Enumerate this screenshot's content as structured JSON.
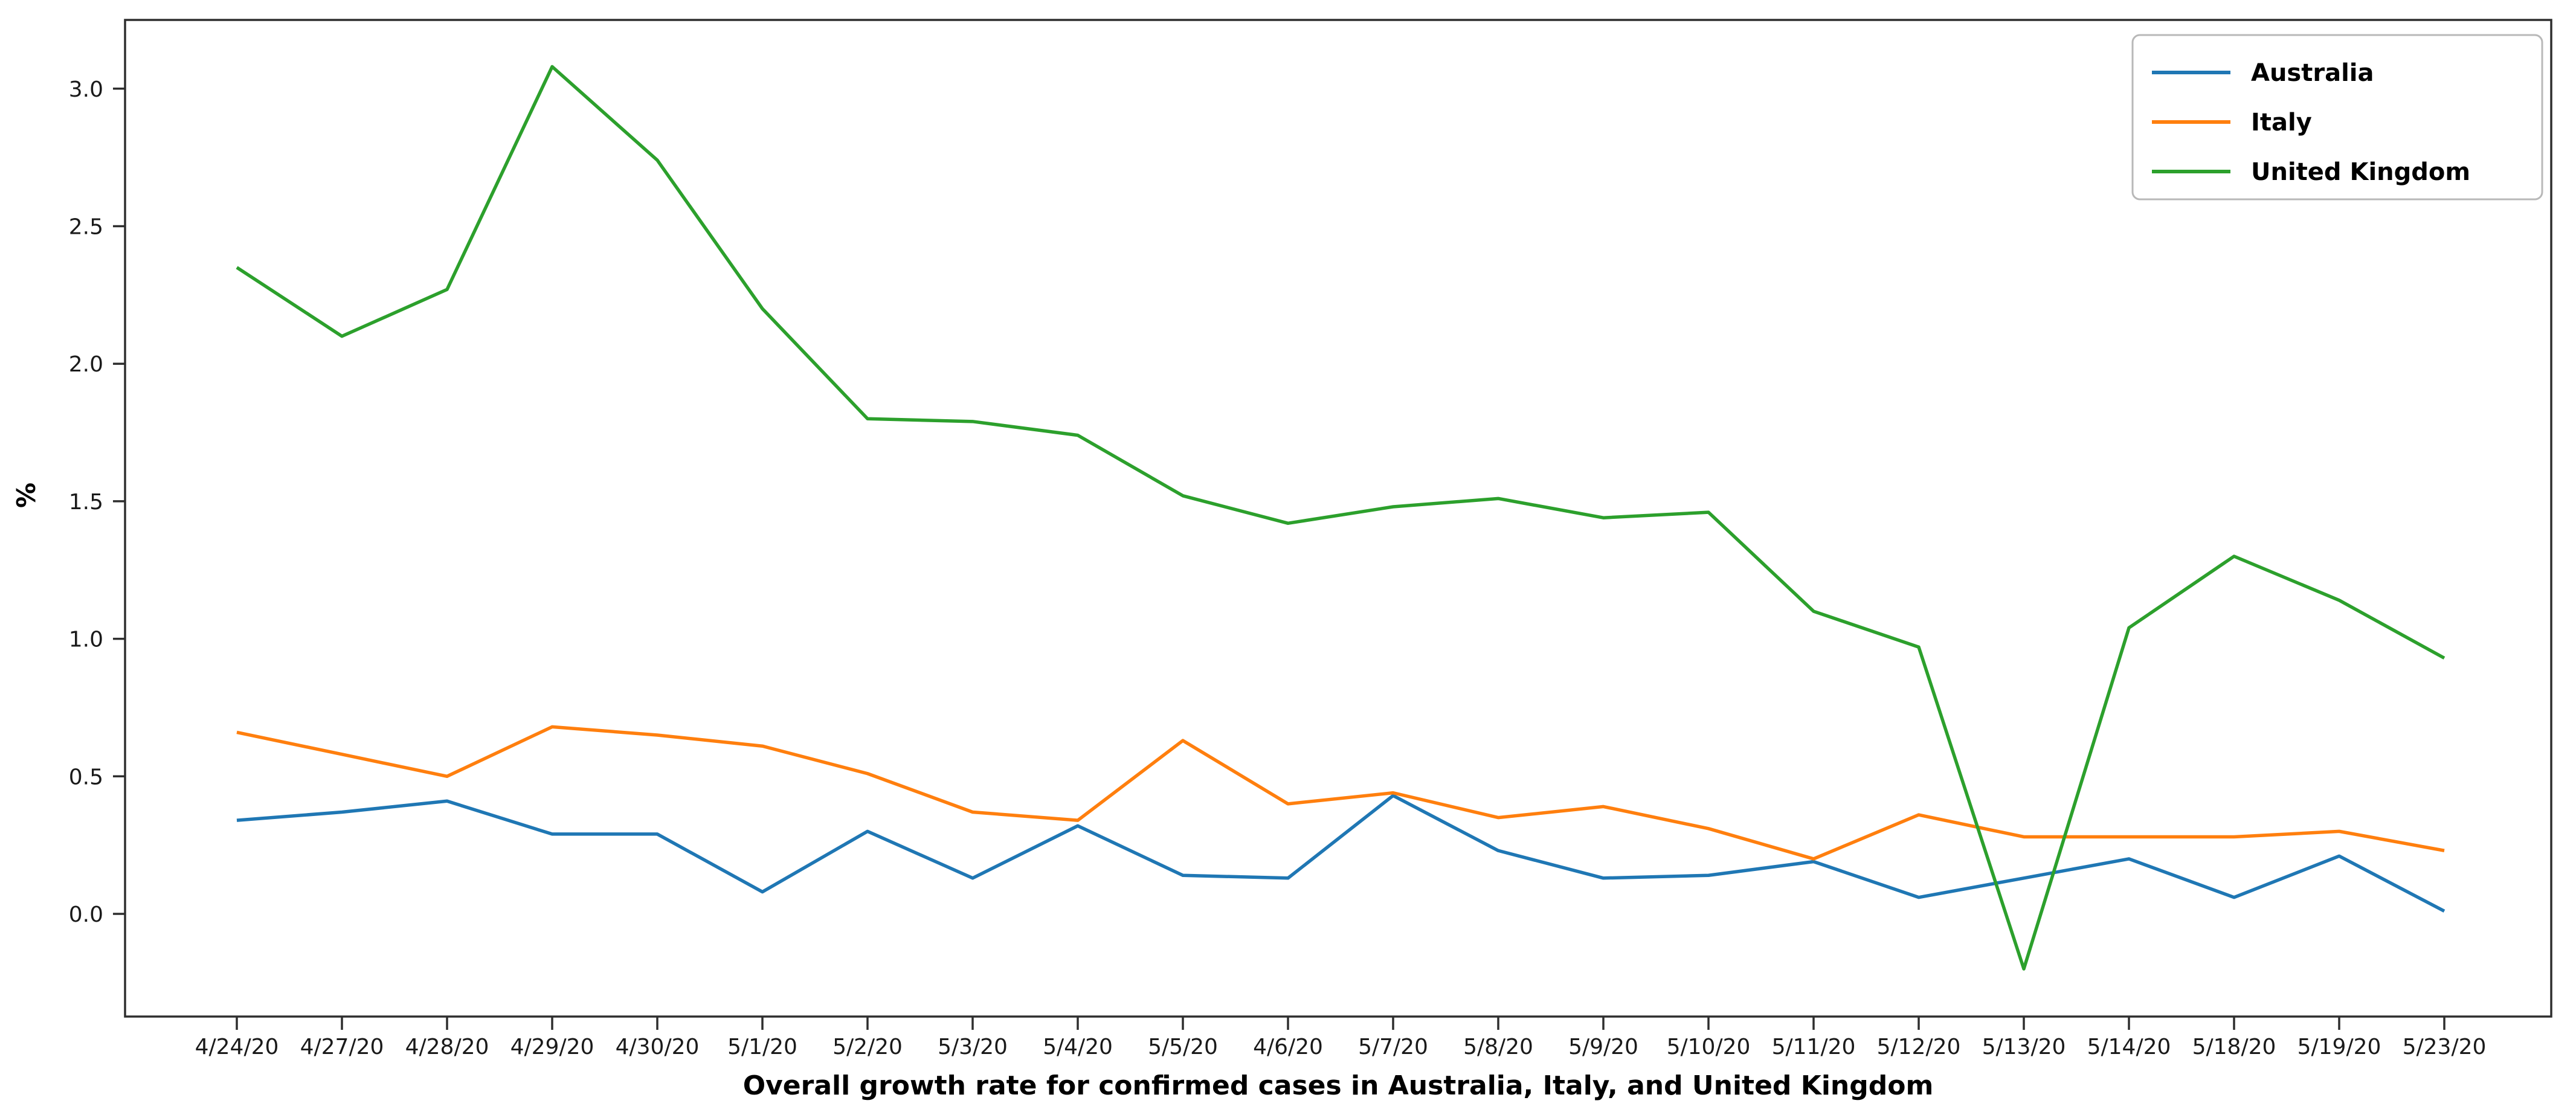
{
  "chart_data": {
    "type": "line",
    "title": "",
    "xlabel": "Overall growth rate for confirmed cases in Australia, Italy, and United Kingdom",
    "ylabel": "%",
    "categories": [
      "4/24/20",
      "4/27/20",
      "4/28/20",
      "4/29/20",
      "4/30/20",
      "5/1/20",
      "5/2/20",
      "5/3/20",
      "5/4/20",
      "5/5/20",
      "4/6/20",
      "5/7/20",
      "5/8/20",
      "5/9/20",
      "5/10/20",
      "5/11/20",
      "5/12/20",
      "5/13/20",
      "5/14/20",
      "5/18/20",
      "5/19/20",
      "5/23/20"
    ],
    "series": [
      {
        "name": "Australia",
        "color": "#1f77b4",
        "values": [
          0.34,
          0.37,
          0.41,
          0.29,
          0.29,
          0.08,
          0.3,
          0.13,
          0.32,
          0.14,
          0.13,
          0.43,
          0.23,
          0.13,
          0.14,
          0.19,
          0.06,
          0.13,
          0.2,
          0.06,
          0.21,
          0.01
        ]
      },
      {
        "name": "Italy",
        "color": "#ff7f0e",
        "values": [
          0.66,
          0.58,
          0.5,
          0.68,
          0.65,
          0.61,
          0.51,
          0.37,
          0.34,
          0.63,
          0.4,
          0.44,
          0.35,
          0.39,
          0.31,
          0.2,
          0.36,
          0.28,
          0.28,
          0.28,
          0.3,
          0.23
        ]
      },
      {
        "name": "United Kingdom",
        "color": "#2ca02c",
        "values": [
          2.35,
          2.1,
          2.27,
          3.08,
          2.74,
          2.2,
          1.8,
          1.79,
          1.74,
          1.52,
          1.42,
          1.48,
          1.51,
          1.44,
          1.46,
          1.1,
          0.97,
          -0.2,
          1.04,
          1.3,
          1.14,
          0.93
        ]
      }
    ],
    "yticks": [
      "0.0",
      "0.5",
      "1.0",
      "1.5",
      "2.0",
      "2.5",
      "3.0"
    ],
    "ytick_values": [
      0.0,
      0.5,
      1.0,
      1.5,
      2.0,
      2.5,
      3.0
    ],
    "ylim": [
      -0.37,
      3.25
    ],
    "grid": false,
    "legend_position": "upper right",
    "axis_color": "#2e2e2e"
  }
}
